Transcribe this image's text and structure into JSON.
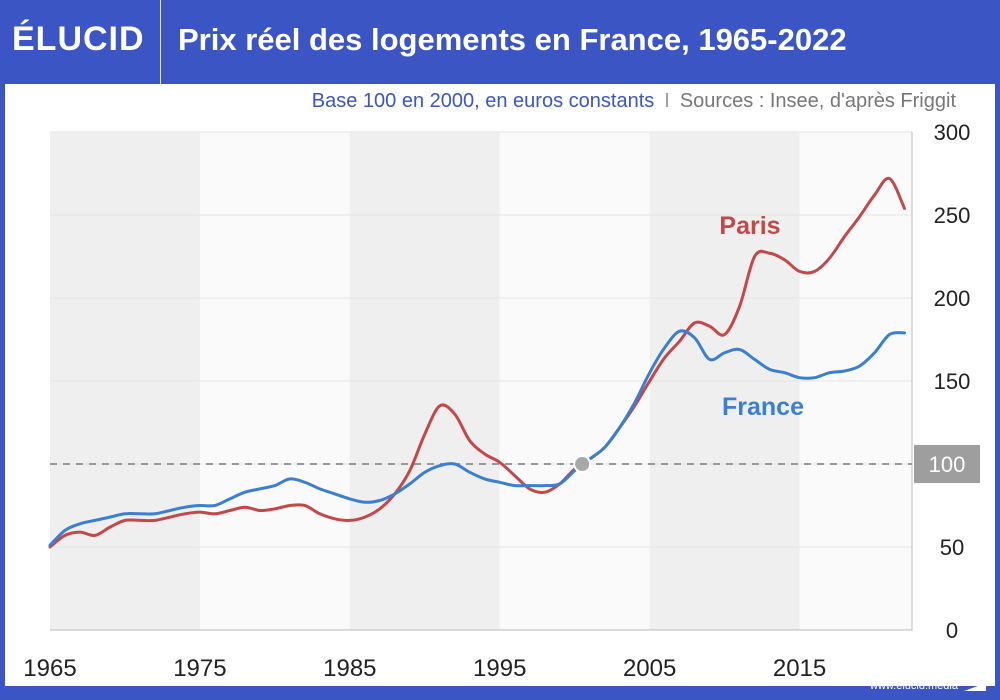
{
  "header": {
    "logo": "ÉLUCID",
    "title": "Prix réel des logements en France, 1965-2022"
  },
  "subtitle": {
    "base": "Base 100 en 2000, en euros constants",
    "separator": "I",
    "sources": "Sources : Insee, d'après Friggit"
  },
  "footer": {
    "url": "www.elucid.media"
  },
  "colors": {
    "brand": "#3c55c5",
    "paris": "#c4474a",
    "france": "#3a7fd0",
    "band": "#efefef",
    "reference": "#999999"
  },
  "chart_data": {
    "type": "line",
    "title": "Prix réel des logements en France, 1965-2022",
    "xlabel": "",
    "ylabel": "",
    "xlim": [
      1965,
      2022.5
    ],
    "ylim": [
      0,
      300
    ],
    "x_ticks": [
      "1965",
      "1975",
      "1985",
      "1995",
      "2005",
      "2015"
    ],
    "y_ticks": [
      "0",
      "50",
      "150",
      "200",
      "250",
      "300"
    ],
    "reference_line": {
      "value": 100,
      "label": "100"
    },
    "highlight_point": {
      "x": 2000.5,
      "y": 100
    },
    "series": [
      {
        "name": "Paris",
        "x": [
          1965,
          1966,
          1967,
          1968,
          1969,
          1970,
          1971,
          1972,
          1973,
          1974,
          1975,
          1976,
          1977,
          1978,
          1979,
          1980,
          1981,
          1982,
          1983,
          1984,
          1985,
          1986,
          1987,
          1988,
          1989,
          1990,
          1991,
          1992,
          1993,
          1994,
          1995,
          1996,
          1997,
          1998,
          1999,
          2000,
          2001,
          2002,
          2003,
          2004,
          2005,
          2006,
          2007,
          2008,
          2009,
          2010,
          2011,
          2012,
          2013,
          2014,
          2015,
          2016,
          2017,
          2018,
          2019,
          2020,
          2021,
          2022
        ],
        "values": [
          50,
          57,
          59,
          57,
          62,
          66,
          66,
          66,
          68,
          70,
          71,
          70,
          72,
          74,
          72,
          73,
          75,
          75,
          70,
          67,
          66,
          68,
          73,
          82,
          96,
          118,
          135,
          130,
          114,
          106,
          101,
          93,
          85,
          83,
          88,
          97,
          103,
          110,
          122,
          135,
          150,
          164,
          174,
          185,
          183,
          178,
          195,
          225,
          227,
          223,
          216,
          216,
          224,
          237,
          249,
          262,
          272,
          254
        ]
      },
      {
        "name": "France",
        "x": [
          1965,
          1966,
          1967,
          1968,
          1969,
          1970,
          1971,
          1972,
          1973,
          1974,
          1975,
          1976,
          1977,
          1978,
          1979,
          1980,
          1981,
          1982,
          1983,
          1984,
          1985,
          1986,
          1987,
          1988,
          1989,
          1990,
          1991,
          1992,
          1993,
          1994,
          1995,
          1996,
          1997,
          1998,
          1999,
          2000,
          2001,
          2002,
          2003,
          2004,
          2005,
          2006,
          2007,
          2008,
          2009,
          2010,
          2011,
          2012,
          2013,
          2014,
          2015,
          2016,
          2017,
          2018,
          2019,
          2020,
          2021,
          2022
        ],
        "values": [
          51,
          60,
          64,
          66,
          68,
          70,
          70,
          70,
          72,
          74,
          75,
          75,
          79,
          83,
          85,
          87,
          91,
          89,
          85,
          82,
          79,
          77,
          78,
          82,
          88,
          95,
          99,
          100,
          95,
          91,
          89,
          87,
          87,
          87,
          88,
          96,
          103,
          110,
          122,
          137,
          155,
          170,
          180,
          176,
          163,
          167,
          169,
          163,
          157,
          155,
          152,
          152,
          155,
          156,
          159,
          167,
          178,
          179
        ]
      }
    ],
    "series_labels": [
      {
        "name": "Paris",
        "text": "Paris"
      },
      {
        "name": "France",
        "text": "France"
      }
    ]
  }
}
